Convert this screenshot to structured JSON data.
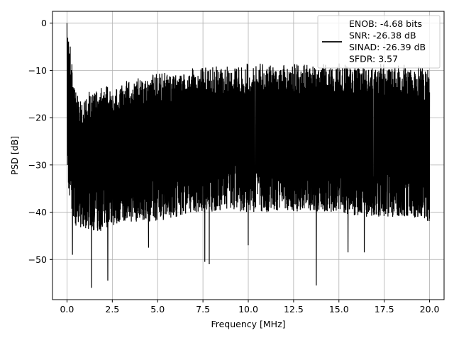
{
  "chart_data": {
    "type": "line",
    "title": "",
    "xlabel": "Frequency [MHz]",
    "ylabel": "PSD [dB]",
    "xlim": [
      -0.8,
      20.8
    ],
    "ylim": [
      -58.5,
      2.5
    ],
    "xticks": [
      0.0,
      2.5,
      5.0,
      7.5,
      10.0,
      12.5,
      15.0,
      17.5,
      20.0
    ],
    "xtick_labels": [
      "0.0",
      "2.5",
      "5.0",
      "7.5",
      "10.0",
      "12.5",
      "15.0",
      "17.5",
      "20.0"
    ],
    "yticks": [
      0,
      -10,
      -20,
      -30,
      -40,
      -50
    ],
    "ytick_labels": [
      "0",
      "−10",
      "−20",
      "−30",
      "−40",
      "−50"
    ],
    "grid": true,
    "legend_position": "top-right",
    "series": [
      {
        "name": "ENOB: -4.68 bits",
        "color": "#000000",
        "envelope": {
          "x": [
            0.0,
            0.5,
            1.0,
            2.0,
            3.0,
            4.0,
            5.0,
            6.0,
            7.0,
            8.0,
            9.0,
            10.0,
            11.0,
            12.0,
            13.0,
            14.0,
            15.0,
            16.0,
            17.0,
            18.0,
            19.0,
            20.0
          ],
          "upper": [
            0.0,
            -16.0,
            -15.5,
            -14.5,
            -13.5,
            -12.5,
            -11.5,
            -11.0,
            -10.5,
            -10.0,
            -10.0,
            -9.5,
            -9.5,
            -9.5,
            -9.5,
            -9.5,
            -9.5,
            -9.5,
            -9.5,
            -9.5,
            -10.0,
            -10.5
          ],
          "lower": [
            -36.0,
            -43.0,
            -44.0,
            -44.0,
            -42.0,
            -42.0,
            -42.0,
            -41.0,
            -40.0,
            -40.0,
            -40.0,
            -40.0,
            -40.0,
            -40.0,
            -40.0,
            -40.0,
            -40.0,
            -41.0,
            -41.0,
            -41.0,
            -41.0,
            -42.0
          ]
        },
        "notable_dips": [
          {
            "x": 0.3,
            "y": -49.0
          },
          {
            "x": 1.35,
            "y": -56.0
          },
          {
            "x": 2.25,
            "y": -54.5
          },
          {
            "x": 4.5,
            "y": -47.5
          },
          {
            "x": 7.6,
            "y": -50.5
          },
          {
            "x": 7.85,
            "y": -51.0
          },
          {
            "x": 10.0,
            "y": -47.0
          },
          {
            "x": 13.75,
            "y": -55.5
          },
          {
            "x": 15.5,
            "y": -48.5
          },
          {
            "x": 16.4,
            "y": -48.5
          }
        ]
      }
    ],
    "legend": {
      "entries": [
        "ENOB: -4.68 bits",
        "SNR: -26.38 dB",
        "SINAD: -26.39 dB",
        "SFDR: 3.57"
      ]
    }
  }
}
